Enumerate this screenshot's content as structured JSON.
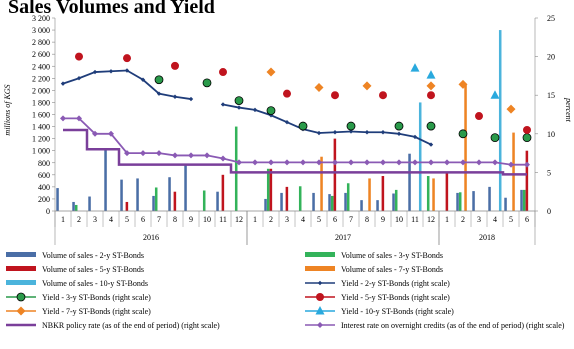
{
  "chart_data": {
    "type": "bar",
    "title": "Sales Volumes and Yield",
    "ylabel": "millions of KGS",
    "y2label": "percent",
    "ylim": [
      0,
      3200
    ],
    "y2lim": [
      0,
      25
    ],
    "yticks": [
      "0",
      "200",
      "400",
      "600",
      "800",
      "1 000",
      "1 200",
      "1 400",
      "1 600",
      "1 800",
      "2 000",
      "2 200",
      "2 400",
      "2 600",
      "2 800",
      "3 000",
      "3 200"
    ],
    "y2ticks": [
      "0",
      "5",
      "10",
      "15",
      "20",
      "25"
    ],
    "years": [
      {
        "label": "2016",
        "start": 0,
        "end": 12
      },
      {
        "label": "2017",
        "start": 12,
        "end": 24
      },
      {
        "label": "2018",
        "start": 24,
        "end": 30
      }
    ],
    "categories": [
      "1",
      "2",
      "3",
      "4",
      "5",
      "6",
      "7",
      "8",
      "9",
      "10",
      "11",
      "12",
      "1",
      "2",
      "3",
      "4",
      "5",
      "6",
      "7",
      "8",
      "9",
      "10",
      "11",
      "12",
      "1",
      "2",
      "3",
      "4",
      "5",
      "6"
    ],
    "bar_series": [
      {
        "name": "Volume of sales - 2-y ST-Bonds",
        "color": "#4a6ea6",
        "values": [
          380,
          150,
          240,
          1020,
          520,
          540,
          250,
          560,
          760,
          0,
          320,
          0,
          0,
          200,
          300,
          0,
          300,
          280,
          300,
          180,
          180,
          290,
          950,
          0,
          0,
          300,
          330,
          400,
          220,
          350
        ]
      },
      {
        "name": "Volume of sales - 3-y ST-Bonds",
        "color": "#33b35a",
        "values": [
          0,
          100,
          0,
          0,
          0,
          0,
          390,
          0,
          0,
          340,
          0,
          1400,
          0,
          700,
          0,
          410,
          0,
          250,
          460,
          0,
          0,
          350,
          0,
          580,
          0,
          310,
          0,
          0,
          0,
          350
        ]
      },
      {
        "name": "Volume of sales - 5-y ST-Bonds",
        "color": "#c0141e",
        "values": [
          0,
          0,
          0,
          0,
          150,
          0,
          0,
          320,
          0,
          0,
          600,
          0,
          0,
          700,
          400,
          0,
          0,
          1200,
          0,
          0,
          580,
          0,
          0,
          0,
          650,
          0,
          0,
          0,
          0,
          1000
        ]
      },
      {
        "name": "Volume of sales - 7-y ST-Bonds",
        "color": "#ee8424",
        "values": [
          0,
          0,
          0,
          0,
          0,
          0,
          0,
          0,
          0,
          0,
          0,
          0,
          0,
          0,
          0,
          0,
          900,
          0,
          0,
          540,
          0,
          0,
          0,
          540,
          0,
          2100,
          0,
          0,
          1300,
          0
        ]
      },
      {
        "name": "Volume of sales - 10-y ST-Bonds",
        "color": "#4bb4dc",
        "values": [
          0,
          0,
          0,
          0,
          0,
          0,
          0,
          0,
          0,
          0,
          0,
          0,
          0,
          0,
          0,
          0,
          0,
          0,
          0,
          0,
          0,
          0,
          1800,
          0,
          0,
          0,
          0,
          3000,
          0,
          0
        ]
      }
    ],
    "line_series": [
      {
        "name": "Yield - 2-y ST-Bonds (right scale)",
        "color": "#1f3d7a",
        "marker": "diamond",
        "values": [
          16.5,
          17.2,
          18.0,
          18.1,
          18.2,
          17,
          15.2,
          14.8,
          14.5,
          null,
          13.8,
          13.4,
          13.1,
          12.4,
          11.5,
          10.6,
          10.1,
          10.2,
          10.3,
          10.2,
          10.2,
          10.0,
          9.6,
          8.6,
          null,
          null,
          null,
          null,
          null,
          null
        ]
      },
      {
        "name": "Yield - 3-y ST-Bonds (right scale)",
        "color": "#2a9a4a",
        "marker": "circle-green",
        "values": [
          null,
          null,
          null,
          null,
          null,
          null,
          17,
          null,
          null,
          16.6,
          null,
          14.3,
          null,
          13.0,
          null,
          11.0,
          null,
          null,
          11.0,
          null,
          null,
          11.0,
          null,
          11.0,
          null,
          10.0,
          null,
          9.5,
          null,
          9.5
        ]
      },
      {
        "name": "Yield - 5-y ST-Bonds (right scale)",
        "color": "#c0141e",
        "marker": "circle-red",
        "values": [
          null,
          20,
          null,
          null,
          19.8,
          null,
          null,
          18.8,
          null,
          null,
          18.0,
          null,
          null,
          null,
          15.2,
          null,
          null,
          15.0,
          null,
          null,
          15.0,
          null,
          null,
          15.0,
          null,
          null,
          12.3,
          null,
          null,
          10.5
        ]
      },
      {
        "name": "Yield - 7-y ST-Bonds (right scale)",
        "color": "#ee8424",
        "marker": "diamond-orange",
        "values": [
          null,
          null,
          null,
          null,
          null,
          null,
          null,
          null,
          null,
          null,
          null,
          null,
          null,
          18.0,
          null,
          null,
          16.0,
          null,
          null,
          16.2,
          null,
          null,
          null,
          16.2,
          null,
          16.4,
          null,
          null,
          13.2,
          null
        ]
      },
      {
        "name": "Yield - 10-y ST-Bonds (right scale)",
        "color": "#29a9de",
        "marker": "triangle",
        "values": [
          null,
          null,
          null,
          null,
          null,
          null,
          null,
          null,
          null,
          null,
          null,
          null,
          null,
          null,
          null,
          null,
          null,
          null,
          null,
          null,
          null,
          null,
          18.5,
          17.6,
          null,
          null,
          null,
          15.0,
          null,
          null
        ]
      },
      {
        "name": "NBKR policy rate (as of the end of period) (right scale)",
        "color": "#7a3f9a",
        "marker": "none",
        "step": true,
        "values": [
          10.5,
          10.5,
          8.0,
          8.0,
          6.0,
          6.0,
          6.0,
          6.0,
          6.0,
          6.0,
          6.0,
          5.0,
          5.0,
          5.0,
          5.0,
          5.0,
          5.0,
          5.0,
          5.0,
          5.0,
          5.0,
          5.0,
          5.0,
          5.0,
          5.0,
          5.0,
          5.0,
          5.0,
          4.75,
          4.75
        ]
      },
      {
        "name": "Interest rate on overnight credits (as of the end of period) (right scale)",
        "color": "#8a5ab4",
        "marker": "diamond-purple",
        "values": [
          12.0,
          12.0,
          10.0,
          10.0,
          7.5,
          7.5,
          7.5,
          7.2,
          7.2,
          7.2,
          6.8,
          6.3,
          6.3,
          6.3,
          6.3,
          6.3,
          6.3,
          6.3,
          6.3,
          6.3,
          6.3,
          6.3,
          6.3,
          6.3,
          6.3,
          6.3,
          6.3,
          6.3,
          6.0,
          6.0
        ]
      }
    ],
    "legend_position": "bottom"
  }
}
